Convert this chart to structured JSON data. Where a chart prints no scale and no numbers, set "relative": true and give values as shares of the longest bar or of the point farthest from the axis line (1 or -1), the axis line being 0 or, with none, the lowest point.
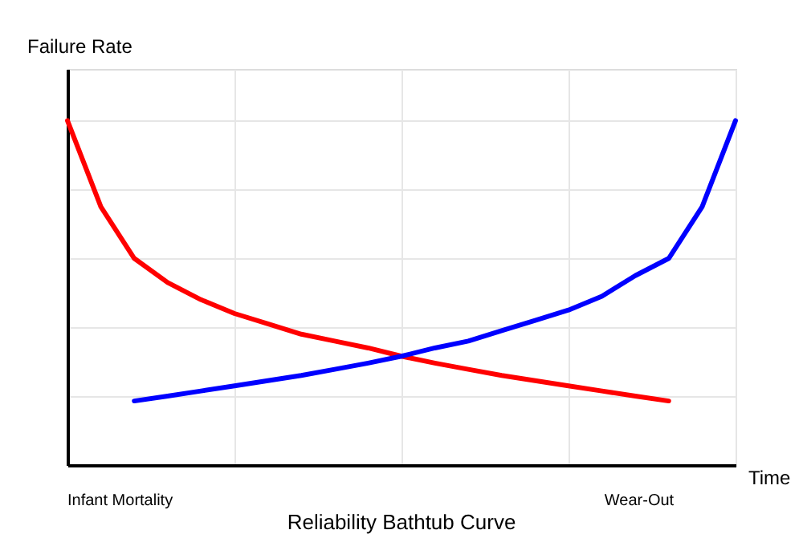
{
  "chart_data": {
    "type": "line",
    "relative": true,
    "title": "Reliability Bathtub Curve",
    "xlabel": "Time",
    "ylabel": "Failure Rate",
    "annotations": [
      "Infant Mortality",
      "Wear-Out"
    ],
    "categories": [
      null,
      null,
      null,
      null,
      null,
      null,
      null,
      null,
      null,
      null,
      null,
      null,
      null,
      null,
      null,
      null,
      null,
      null,
      null,
      null,
      null
    ],
    "tick_labels": false,
    "grid": true,
    "legend": false,
    "marker": "none",
    "line_style": "solid",
    "series": [
      {
        "color": "#ff0000",
        "values": [
          1,
          0.75,
          0.6,
          0.53,
          0.48,
          0.44,
          0.41,
          0.38,
          0.36,
          0.34,
          0.316,
          0.296,
          0.278,
          0.26,
          0.245,
          0.23,
          0.215,
          0.2,
          0.186,
          null,
          null
        ]
      },
      {
        "color": "#0000ff",
        "values": [
          null,
          null,
          0.186,
          0.2,
          0.215,
          0.23,
          0.245,
          0.26,
          0.278,
          0.296,
          0.316,
          0.34,
          0.36,
          0.39,
          0.42,
          0.45,
          0.49,
          0.55,
          0.6,
          0.75,
          1
        ]
      }
    ]
  }
}
